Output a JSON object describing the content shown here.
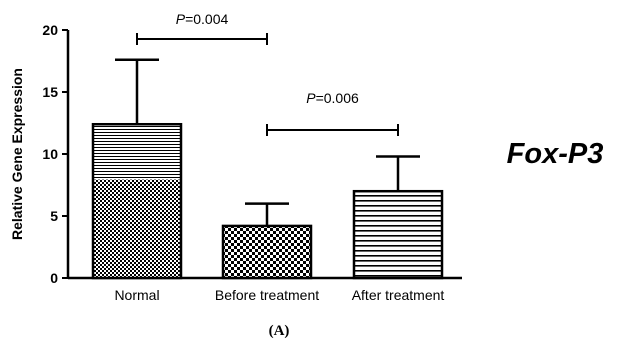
{
  "chart_data": {
    "type": "bar",
    "ylabel": "Relative Gene Expression",
    "ylim": [
      0,
      20
    ],
    "yticks": [
      0,
      5,
      10,
      15,
      20
    ],
    "categories": [
      "Normal",
      "Before treatment",
      "After treatment"
    ],
    "values": [
      12.4,
      4.2,
      7.0
    ],
    "errors": [
      5.2,
      1.8,
      2.8
    ],
    "fill_patterns": [
      "checkered-with-stripes",
      "checkerboard",
      "horizontal-stripes"
    ],
    "comparisons": [
      {
        "between": [
          0,
          1
        ],
        "p_letter": "P",
        "p_value": "=0.004"
      },
      {
        "between": [
          1,
          2
        ],
        "p_letter": "P",
        "p_value": "=0.006"
      }
    ],
    "gene_label": "Fox-P3",
    "panel_label": "(A)",
    "grid": false
  }
}
